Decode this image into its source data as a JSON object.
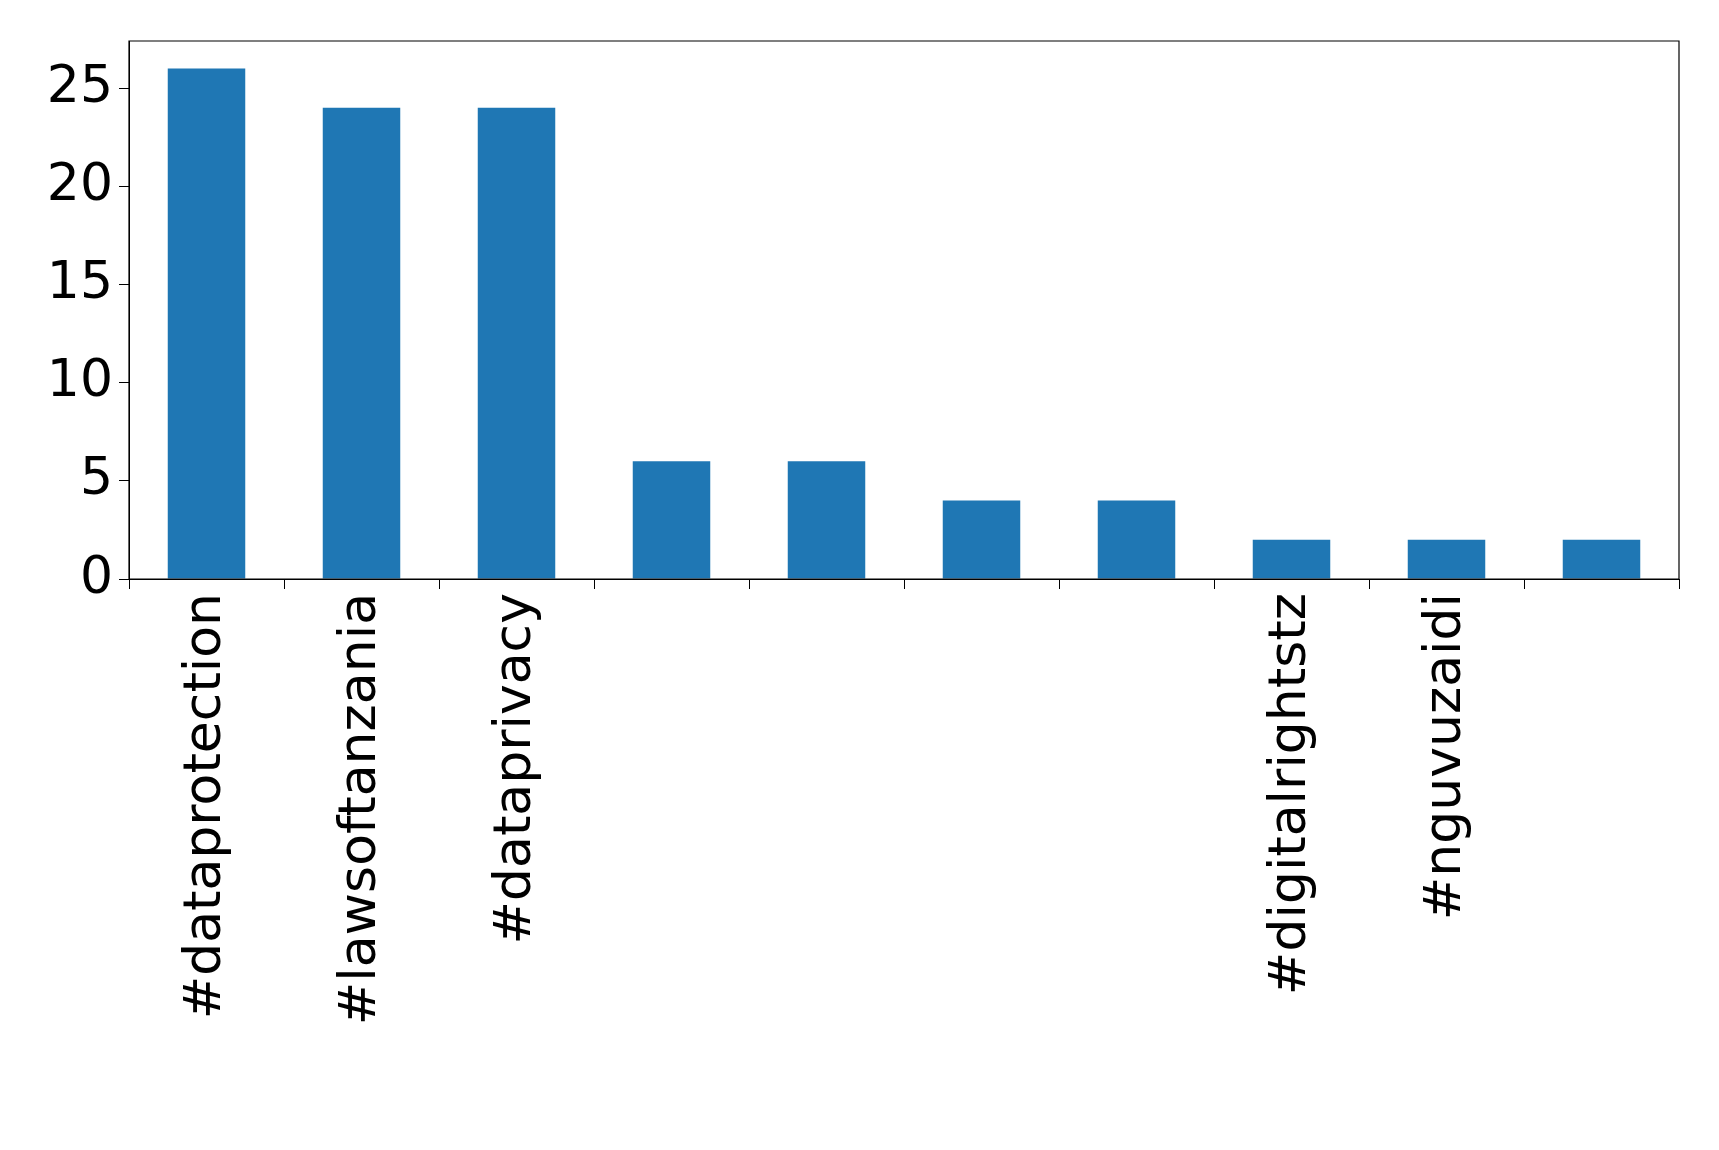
{
  "chart_data": {
    "type": "bar",
    "categories": [
      "#dataprotection",
      "#lawsoftanzania",
      "#dataprivacy",
      null,
      null,
      null,
      null,
      "#digitalrightstz",
      "#nguvuzaidi",
      null
    ],
    "values": [
      26,
      24,
      24,
      6,
      6,
      4,
      4,
      2,
      2,
      2
    ],
    "color": "#1f77b4",
    "ylim": [
      0,
      27.4
    ],
    "yticks": [
      0,
      5,
      10,
      15,
      20,
      25
    ],
    "grid": false
  }
}
